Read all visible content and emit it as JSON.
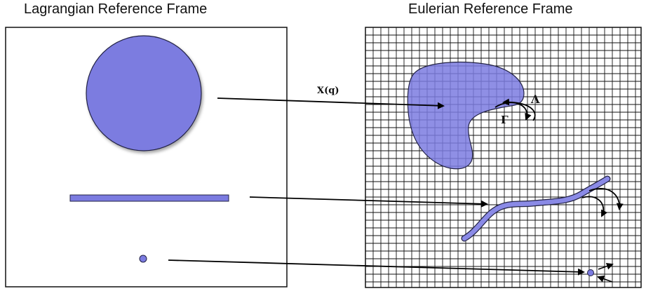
{
  "titles": {
    "lagrangian": "Lagrangian Reference Frame",
    "eulerian": "Eulerian Reference Frame"
  },
  "labels": {
    "map": "X(q)",
    "lambda": "Λ",
    "gamma": "Γ"
  },
  "colors": {
    "body_fill": "#7b7be0",
    "body_stroke": "#222244",
    "grid_line": "#111111",
    "frame_border": "#111111",
    "arrow": "#000000"
  }
}
